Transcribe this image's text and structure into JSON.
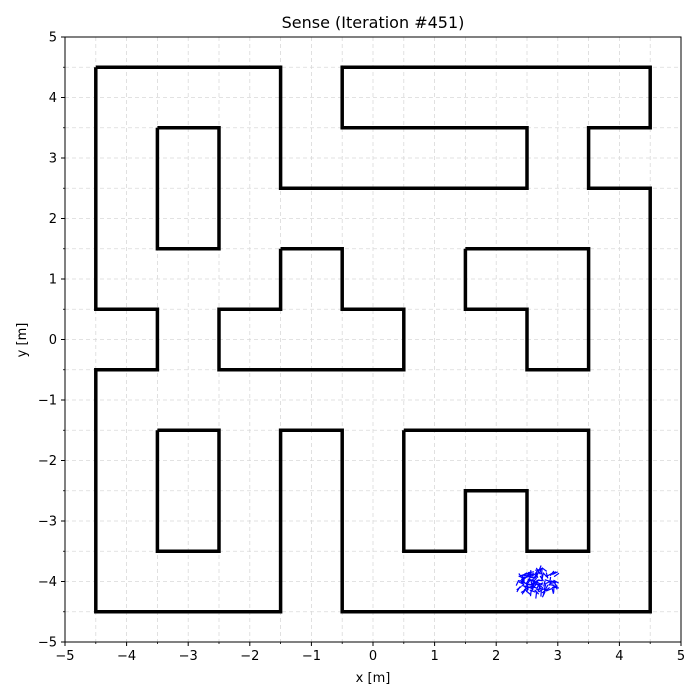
{
  "chart_data": {
    "type": "line",
    "title": "Sense (Iteration #451)",
    "xlabel": "x [m]",
    "ylabel": "y [m]",
    "xlim": [
      -5,
      5
    ],
    "ylim": [
      -5,
      5
    ],
    "grid": true,
    "major_ticks": [
      -5,
      -4,
      -3,
      -2,
      -1,
      0,
      1,
      2,
      3,
      4,
      5
    ],
    "minor_ticks": [
      -4.5,
      -3.5,
      -2.5,
      -1.5,
      -0.5,
      0.5,
      1.5,
      2.5,
      3.5,
      4.5
    ],
    "colors": {
      "walls": "#000000",
      "particles": "#0000ff",
      "grid": "#d9d9d9"
    },
    "walls": [
      [
        [
          -4.5,
          4.5
        ],
        [
          -1.5,
          4.5
        ],
        [
          -1.5,
          2.5
        ],
        [
          2.5,
          2.5
        ],
        [
          2.5,
          3.5
        ],
        [
          -0.5,
          3.5
        ],
        [
          -0.5,
          4.5
        ],
        [
          4.5,
          4.5
        ],
        [
          4.5,
          3.5
        ],
        [
          3.5,
          3.5
        ],
        [
          3.5,
          2.5
        ],
        [
          4.5,
          2.5
        ],
        [
          4.5,
          -4.5
        ],
        [
          -0.5,
          -4.5
        ],
        [
          -0.5,
          -1.5
        ],
        [
          -1.5,
          -1.5
        ],
        [
          -1.5,
          -4.5
        ],
        [
          -4.5,
          -4.5
        ],
        [
          -4.5,
          -0.5
        ],
        [
          -3.5,
          -0.5
        ],
        [
          -3.5,
          0.5
        ],
        [
          -4.5,
          0.5
        ],
        [
          -4.5,
          4.5
        ]
      ],
      [
        [
          -3.5,
          3.5
        ],
        [
          -2.5,
          3.5
        ],
        [
          -2.5,
          1.5
        ],
        [
          -3.5,
          1.5
        ],
        [
          -3.5,
          3.5
        ]
      ],
      [
        [
          -3.5,
          -1.5
        ],
        [
          -2.5,
          -1.5
        ],
        [
          -2.5,
          -3.5
        ],
        [
          -3.5,
          -3.5
        ],
        [
          -3.5,
          -1.5
        ]
      ],
      [
        [
          -1.5,
          1.5
        ],
        [
          -0.5,
          1.5
        ],
        [
          -0.5,
          0.5
        ],
        [
          0.5,
          0.5
        ],
        [
          0.5,
          -0.5
        ],
        [
          -2.5,
          -0.5
        ],
        [
          -2.5,
          0.5
        ],
        [
          -1.5,
          0.5
        ],
        [
          -1.5,
          1.5
        ]
      ],
      [
        [
          1.5,
          1.5
        ],
        [
          3.5,
          1.5
        ],
        [
          3.5,
          -0.5
        ],
        [
          2.5,
          -0.5
        ],
        [
          2.5,
          0.5
        ],
        [
          1.5,
          0.5
        ],
        [
          1.5,
          1.5
        ]
      ],
      [
        [
          0.5,
          -1.5
        ],
        [
          3.5,
          -1.5
        ],
        [
          3.5,
          -3.5
        ],
        [
          2.5,
          -3.5
        ],
        [
          2.5,
          -2.5
        ],
        [
          1.5,
          -2.5
        ],
        [
          1.5,
          -3.5
        ],
        [
          0.5,
          -3.5
        ],
        [
          0.5,
          -1.5
        ]
      ]
    ],
    "particles": {
      "center": [
        2.65,
        -4.0
      ],
      "spread": [
        0.32,
        0.2
      ],
      "count": 120
    }
  }
}
